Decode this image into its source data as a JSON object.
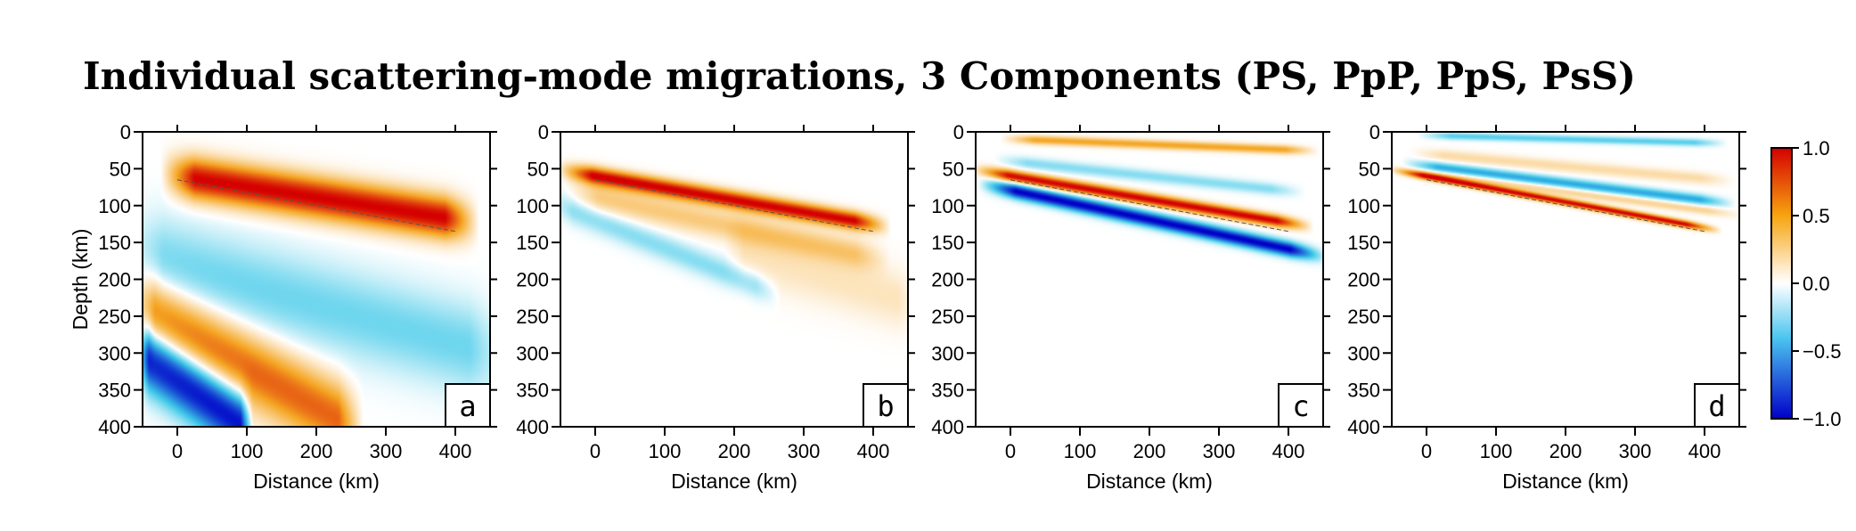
{
  "title": "Individual scattering-mode migrations, 3 Components (PS, PpP, PpS, PsS)",
  "colorbar": {
    "ticks": [
      "1.0",
      "0.5",
      "0.0",
      "−0.5",
      "−1.0"
    ],
    "tick_values": [
      1.0,
      0.5,
      0.0,
      -0.5,
      -1.0
    ],
    "colors": {
      "pos": "#d40000",
      "mid": "#ffffff",
      "neg": "#0000c8",
      "warm": "#f5a623",
      "cool": "#3ec8e8"
    }
  },
  "chart_data": [
    {
      "type": "heatmap",
      "panel_label": "a",
      "xlabel": "Distance (km)",
      "ylabel": "Depth (km)",
      "xlim": [
        -50,
        450
      ],
      "ylim": [
        400,
        0
      ],
      "xticks": [
        0,
        100,
        200,
        300,
        400
      ],
      "yticks": [
        0,
        50,
        100,
        150,
        200,
        250,
        300,
        350,
        400
      ],
      "interface": {
        "x": [
          0,
          400
        ],
        "depth": [
          65,
          135
        ]
      },
      "features": [
        {
          "sign": "positive",
          "amplitude": 1.0,
          "x": [
            0,
            410
          ],
          "depth": [
            60,
            120
          ],
          "width_km": 28
        },
        {
          "sign": "negative",
          "amplitude": -0.3,
          "x": [
            -50,
            450
          ],
          "depth": [
            170,
            300
          ],
          "width_km": 60
        },
        {
          "sign": "positive",
          "amplitude": 0.7,
          "x": [
            -50,
            250
          ],
          "depth": [
            240,
            400
          ],
          "width_km": 50
        },
        {
          "sign": "negative",
          "amplitude": -1.0,
          "x": [
            -50,
            100
          ],
          "depth": [
            300,
            400
          ],
          "width_km": 45
        }
      ]
    },
    {
      "type": "heatmap",
      "panel_label": "b",
      "xlabel": "Distance (km)",
      "ylabel": "",
      "xlim": [
        -50,
        450
      ],
      "ylim": [
        400,
        0
      ],
      "xticks": [
        0,
        100,
        200,
        300,
        400
      ],
      "yticks": [
        0,
        50,
        100,
        150,
        200,
        250,
        300,
        350,
        400
      ],
      "interface": {
        "x": [
          0,
          400
        ],
        "depth": [
          65,
          135
        ]
      },
      "features": [
        {
          "sign": "positive",
          "amplitude": 1.0,
          "x": [
            -30,
            400
          ],
          "depth": [
            55,
            125
          ],
          "width_km": 12
        },
        {
          "sign": "positive",
          "amplitude": 0.3,
          "x": [
            -20,
            400
          ],
          "depth": [
            85,
            170
          ],
          "width_km": 20
        },
        {
          "sign": "negative",
          "amplitude": -0.25,
          "x": [
            -50,
            250
          ],
          "depth": [
            100,
            215
          ],
          "width_km": 18
        },
        {
          "sign": "positive",
          "amplitude": 0.15,
          "x": [
            200,
            450
          ],
          "depth": [
            160,
            230
          ],
          "width_km": 40
        }
      ]
    },
    {
      "type": "heatmap",
      "panel_label": "c",
      "xlabel": "Distance (km)",
      "ylabel": "",
      "xlim": [
        -50,
        450
      ],
      "ylim": [
        400,
        0
      ],
      "xticks": [
        0,
        100,
        200,
        300,
        400
      ],
      "yticks": [
        0,
        50,
        100,
        150,
        200,
        250,
        300,
        350,
        400
      ],
      "interface": {
        "x": [
          0,
          400
        ],
        "depth": [
          65,
          135
        ]
      },
      "features": [
        {
          "sign": "positive",
          "amplitude": 0.5,
          "x": [
            10,
            420
          ],
          "depth": [
            10,
            25
          ],
          "width_km": 6
        },
        {
          "sign": "negative",
          "amplitude": -0.25,
          "x": [
            0,
            400
          ],
          "depth": [
            40,
            80
          ],
          "width_km": 8
        },
        {
          "sign": "positive",
          "amplitude": 1.0,
          "x": [
            -30,
            410
          ],
          "depth": [
            55,
            125
          ],
          "width_km": 8
        },
        {
          "sign": "negative",
          "amplitude": -1.0,
          "x": [
            -20,
            430
          ],
          "depth": [
            75,
            165
          ],
          "width_km": 10
        }
      ]
    },
    {
      "type": "heatmap",
      "panel_label": "d",
      "xlabel": "Distance (km)",
      "ylabel": "",
      "xlim": [
        -50,
        450
      ],
      "ylim": [
        400,
        0
      ],
      "xticks": [
        0,
        100,
        200,
        300,
        400
      ],
      "yticks": [
        0,
        50,
        100,
        150,
        200,
        250,
        300,
        350,
        400
      ],
      "interface": {
        "x": [
          0,
          400
        ],
        "depth": [
          65,
          135
        ]
      },
      "features": [
        {
          "sign": "negative",
          "amplitude": -0.35,
          "x": [
            10,
            410
          ],
          "depth": [
            5,
            15
          ],
          "width_km": 5
        },
        {
          "sign": "positive",
          "amplitude": 0.2,
          "x": [
            0,
            420
          ],
          "depth": [
            30,
            65
          ],
          "width_km": 8
        },
        {
          "sign": "negative",
          "amplitude": -0.5,
          "x": [
            -10,
            420
          ],
          "depth": [
            45,
            95
          ],
          "width_km": 7
        },
        {
          "sign": "positive",
          "amplitude": 0.25,
          "x": [
            -10,
            430
          ],
          "depth": [
            55,
            110
          ],
          "width_km": 6
        },
        {
          "sign": "positive",
          "amplitude": 1.0,
          "x": [
            -30,
            400
          ],
          "depth": [
            55,
            130
          ],
          "width_km": 5
        }
      ]
    }
  ]
}
